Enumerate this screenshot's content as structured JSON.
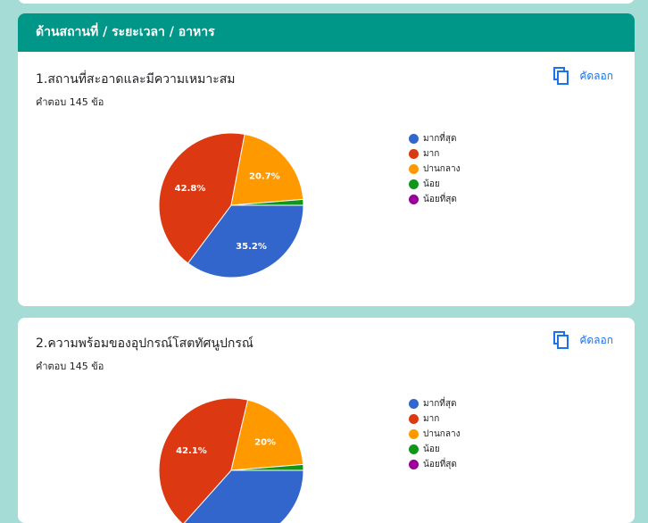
{
  "section": {
    "title": "ด้านสถานที่ / ระยะเวลา / อาหาร"
  },
  "copy_label": "คัดลอก",
  "legend": [
    {
      "label": "มากที่สุด",
      "color": "#3366cc"
    },
    {
      "label": "มาก",
      "color": "#dc3912"
    },
    {
      "label": "ปานกลาง",
      "color": "#ff9900"
    },
    {
      "label": "น้อย",
      "color": "#109618"
    },
    {
      "label": "น้อยที่สุด",
      "color": "#990099"
    }
  ],
  "questions": [
    {
      "title": "1.สถานที่สะอาดและมีความเหมาะสม",
      "responses": "คำตอบ 145 ข้อ"
    },
    {
      "title": "2.ความพร้อมของอุปกรณ์โสตทัศนูปกรณ์",
      "responses": "คำตอบ 145 ข้อ"
    }
  ],
  "chart_data": [
    {
      "type": "pie",
      "categories": [
        "มากที่สุด",
        "มาก",
        "ปานกลาง",
        "น้อย",
        "น้อยที่สุด"
      ],
      "values": [
        35.2,
        42.8,
        20.7,
        1.3,
        0
      ],
      "data_labels": [
        "35.2%",
        "42.8%",
        "20.7%",
        "",
        ""
      ],
      "legend_position": "right"
    },
    {
      "type": "pie",
      "categories": [
        "มากที่สุด",
        "มาก",
        "ปานกลาง",
        "น้อย",
        "น้อยที่สุด"
      ],
      "values": [
        36.6,
        42.1,
        20.0,
        1.3,
        0
      ],
      "data_labels": [
        "",
        "42.1%",
        "20%",
        "",
        ""
      ],
      "legend_position": "right"
    }
  ]
}
